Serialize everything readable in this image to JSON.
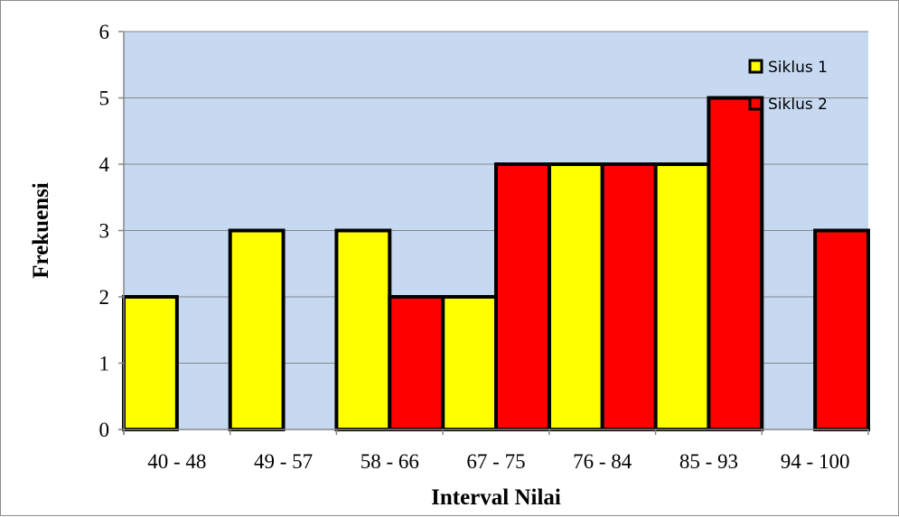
{
  "chart_data": {
    "type": "bar",
    "title": "",
    "xlabel": "Interval Nilai",
    "ylabel": "Frekuensi",
    "categories": [
      "40 - 48",
      "49 - 57",
      "58 - 66",
      "67 - 75",
      "76 - 84",
      "85 - 93",
      "94 - 100"
    ],
    "series": [
      {
        "name": "Siklus 1",
        "color": "#ffff00",
        "values": [
          2,
          3,
          3,
          2,
          4,
          4,
          0
        ]
      },
      {
        "name": "Siklus 2",
        "color": "#ff0000",
        "values": [
          0,
          0,
          2,
          4,
          4,
          5,
          3
        ]
      }
    ],
    "ylim": [
      0,
      6
    ],
    "yticks": [
      0,
      1,
      2,
      3,
      4,
      5,
      6
    ],
    "grid": true,
    "legend": "top-right",
    "plot_background": "#c6d9f1",
    "bar_outline": "#000000"
  }
}
